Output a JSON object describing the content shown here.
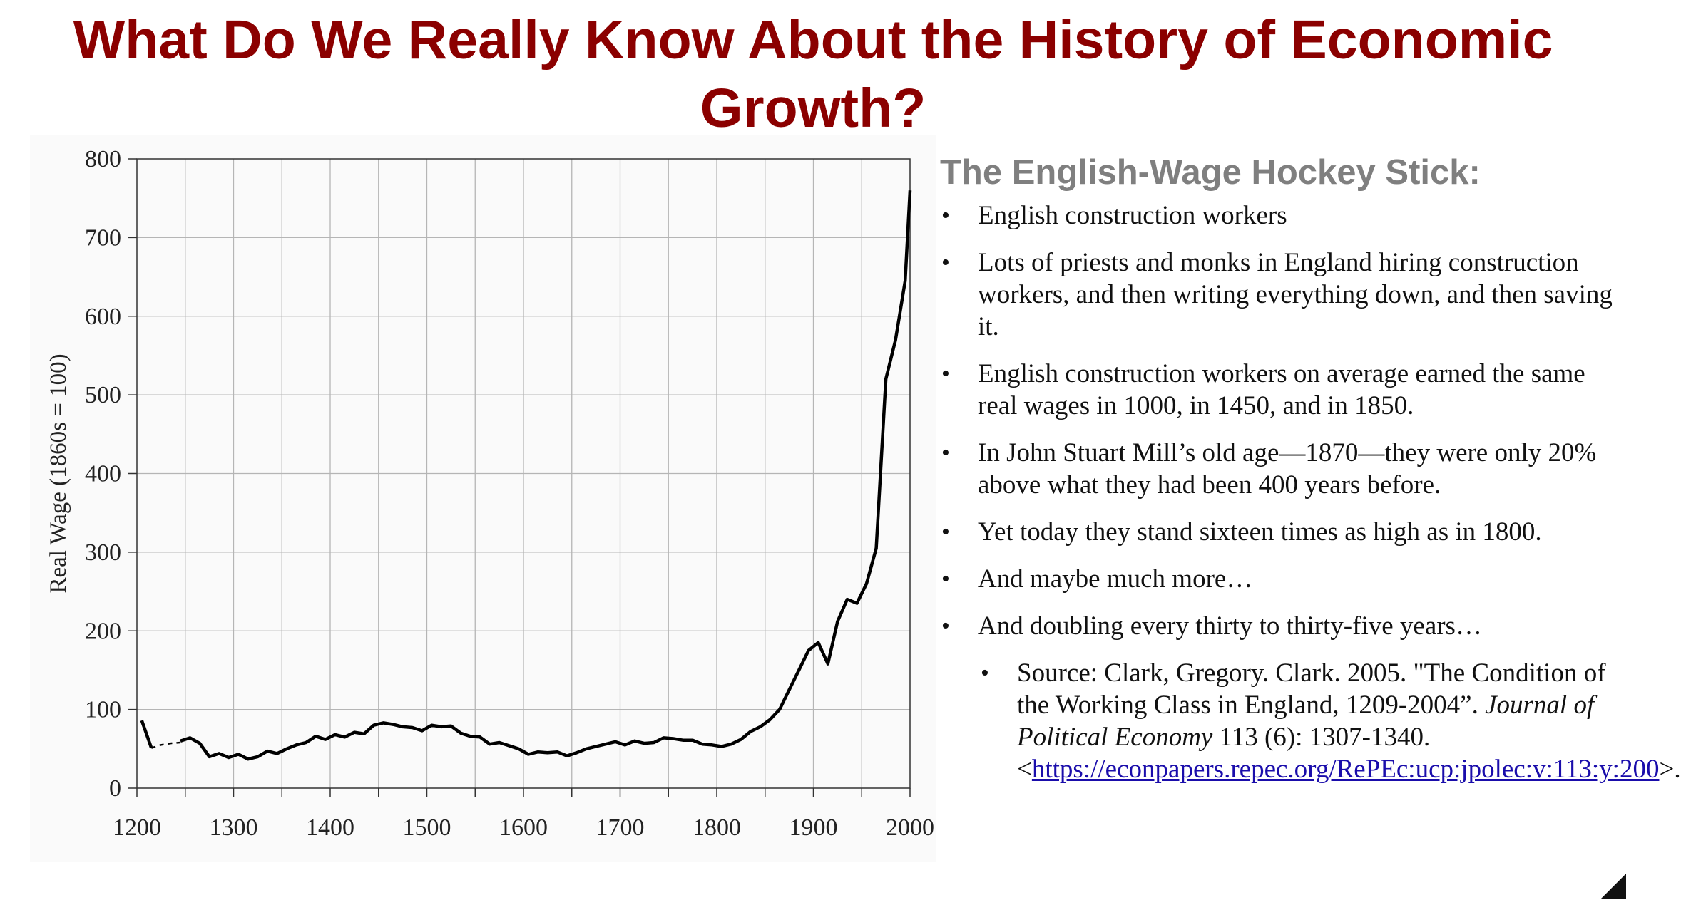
{
  "page_title": "What Do We Really Know About the History of Economic Growth?",
  "panel": {
    "heading": "The English-Wage Hockey Stick:",
    "bullets": [
      "English construction workers",
      "Lots of priests and monks in England hiring construction workers, and then writing everything down, and then saving it.",
      "English construction workers on average earned the same real wages in 1000, in 1450, and in 1850.",
      "In John Stuart Mill’s old age—1870—they were only 20% above what they had been 400 years before.",
      "Yet today they stand sixteen times as high as in 1800.",
      "And maybe much more…",
      "And doubling every thirty to thirty-five years…"
    ],
    "source": {
      "prefix": "Source: Clark, Gregory. Clark. 2005. \"The Condition of the Working Class in England, 1209-2004”. ",
      "journal": "Journal of Political Economy",
      "suffix": " 113 (6): 1307-1340. <",
      "link_text": "https://econpapers.repec.org/RePEc:ucp:jpolec:v:113:y:200",
      "end": ">."
    }
  },
  "chart_data": {
    "type": "line",
    "title": "",
    "xlabel": "",
    "ylabel": "Real Wage (1860s = 100)",
    "xlim": [
      1200,
      2000
    ],
    "ylim": [
      0,
      800
    ],
    "xticks": [
      "1200",
      "1300",
      "1400",
      "1500",
      "1600",
      "1700",
      "1800",
      "1900",
      "2000"
    ],
    "yticks": [
      "0",
      "100",
      "200",
      "300",
      "400",
      "500",
      "600",
      "700",
      "800"
    ],
    "grid": true,
    "legend": "none",
    "line_color": "#000000",
    "dashed_segment": {
      "x": [
        1215,
        1225,
        1235,
        1245
      ],
      "y": [
        51,
        55,
        57,
        58
      ]
    },
    "series": [
      {
        "x": [
          1245,
          1255,
          1265,
          1275,
          1285,
          1295,
          1305,
          1315,
          1325,
          1335,
          1345,
          1355,
          1365,
          1375,
          1385,
          1395,
          1405,
          1415,
          1425,
          1435,
          1445,
          1455,
          1465,
          1475,
          1485,
          1495,
          1505,
          1515,
          1525,
          1535,
          1545,
          1555,
          1565,
          1575,
          1585,
          1595,
          1605,
          1615,
          1625,
          1635,
          1645,
          1655,
          1665,
          1675,
          1685,
          1695,
          1705,
          1715,
          1725,
          1735,
          1745,
          1755,
          1765,
          1775,
          1785,
          1795,
          1805,
          1815,
          1825,
          1835,
          1845,
          1855,
          1865,
          1875,
          1885,
          1895,
          1905,
          1915,
          1925,
          1935,
          1945,
          1955,
          1965,
          1975,
          1985,
          1995,
          2000
        ],
        "y": [
          60,
          64,
          57,
          40,
          44,
          39,
          43,
          37,
          40,
          47,
          44,
          50,
          55,
          58,
          66,
          62,
          68,
          65,
          71,
          69,
          80,
          83,
          81,
          78,
          77,
          73,
          80,
          78,
          79,
          70,
          66,
          65,
          56,
          58,
          54,
          50,
          43,
          46,
          45,
          46,
          41,
          45,
          50,
          53,
          56,
          59,
          55,
          60,
          57,
          58,
          64,
          63,
          61,
          61,
          56,
          55,
          53,
          56,
          62,
          72,
          78,
          87,
          100,
          125,
          150,
          175,
          185,
          158,
          212,
          240,
          235,
          260,
          305,
          520,
          570,
          645,
          760
        ]
      }
    ]
  }
}
